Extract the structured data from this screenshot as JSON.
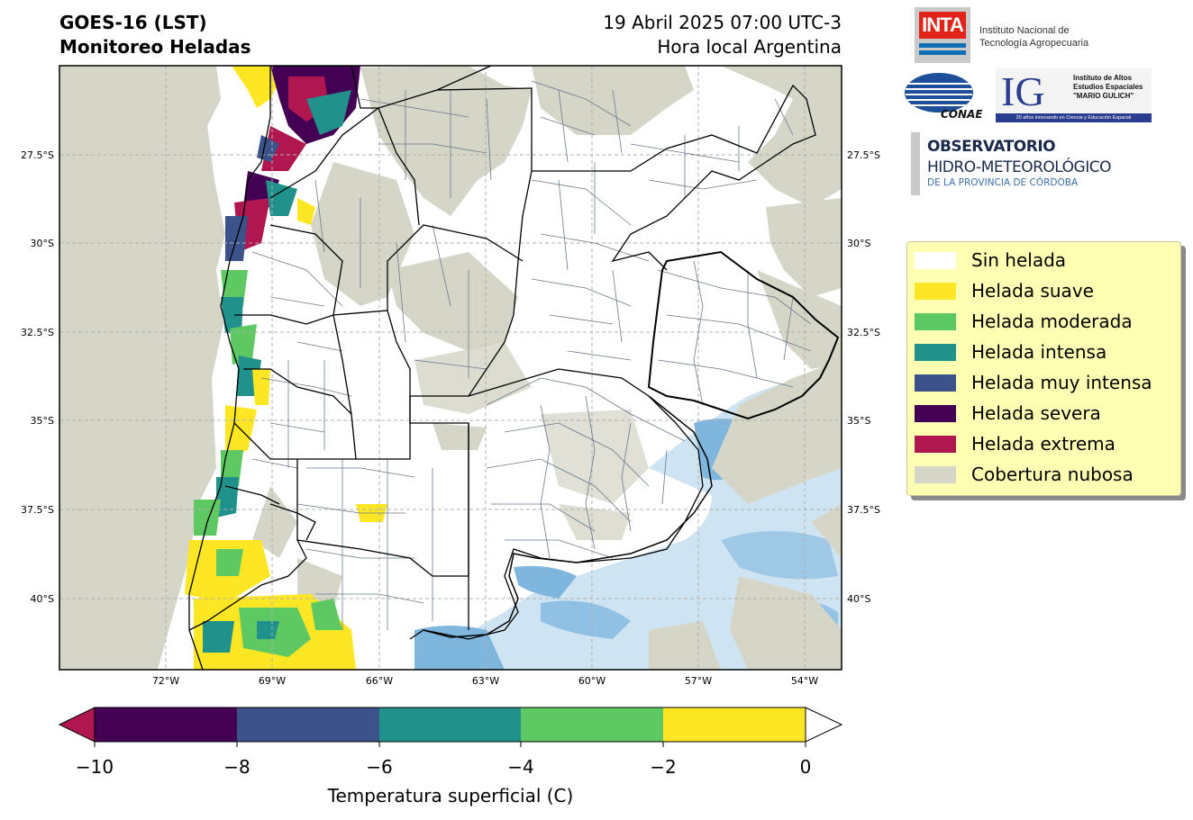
{
  "header": {
    "title_line1": "GOES-16 (LST)",
    "title_line2": "Monitoreo Heladas",
    "date_line1": "19 Abril 2025 07:00 UTC-3",
    "date_line2": "Hora local Argentina"
  },
  "logos": {
    "inta_mark": "INTA",
    "inta_line1": "Instituto Nacional de",
    "inta_line2": "Tecnología Agropecuaria",
    "conae": "CONAE",
    "ig_mark": "IG",
    "ig_line1": "Instituto de Altos",
    "ig_line2": "Estudios Espaciales",
    "ig_line3": "\"MARIO GULICH\"",
    "ig_footer": "20 años innovando en Ciencia y Educación Espacial",
    "obs_line1": "OBSERVATORIO",
    "obs_line2": "HIDRO-METEOROLÓGICO",
    "obs_line3": "DE LA PROVINCIA DE CÓRDOBA"
  },
  "map": {
    "lon_ticks": [
      "72°W",
      "69°W",
      "66°W",
      "63°W",
      "60°W",
      "57°W",
      "54°W"
    ],
    "lat_ticks": [
      "27.5°S",
      "30°S",
      "32.5°S",
      "35°S",
      "37.5°S",
      "40°S"
    ],
    "colors": {
      "cloud": "#d6d6c8",
      "water": "#7fb6de",
      "water_light": "#a8cde8",
      "border": "#000000",
      "department": "#6a7a8a",
      "grid": "#b0b0b0"
    }
  },
  "legend": {
    "items": [
      {
        "label": "Sin helada",
        "color": "#ffffff"
      },
      {
        "label": "Helada suave",
        "color": "#fde725"
      },
      {
        "label": "Helada moderada",
        "color": "#5ec962"
      },
      {
        "label": "Helada intensa",
        "color": "#21918c"
      },
      {
        "label": "Helada muy intensa",
        "color": "#3b528b"
      },
      {
        "label": "Helada severa",
        "color": "#440154"
      },
      {
        "label": "Helada extrema",
        "color": "#b01650"
      },
      {
        "label": "Cobertura nubosa",
        "color": "#d6d6c8"
      }
    ]
  },
  "colorbar": {
    "tick_labels": [
      "−10",
      "−8",
      "−6",
      "−4",
      "−2",
      "0"
    ],
    "label": "Temperatura superficial (C)",
    "segments": [
      "#440154",
      "#3b528b",
      "#21918c",
      "#5ec962",
      "#fde725"
    ],
    "under_color": "#b01650",
    "over_color": "#ffffff"
  }
}
